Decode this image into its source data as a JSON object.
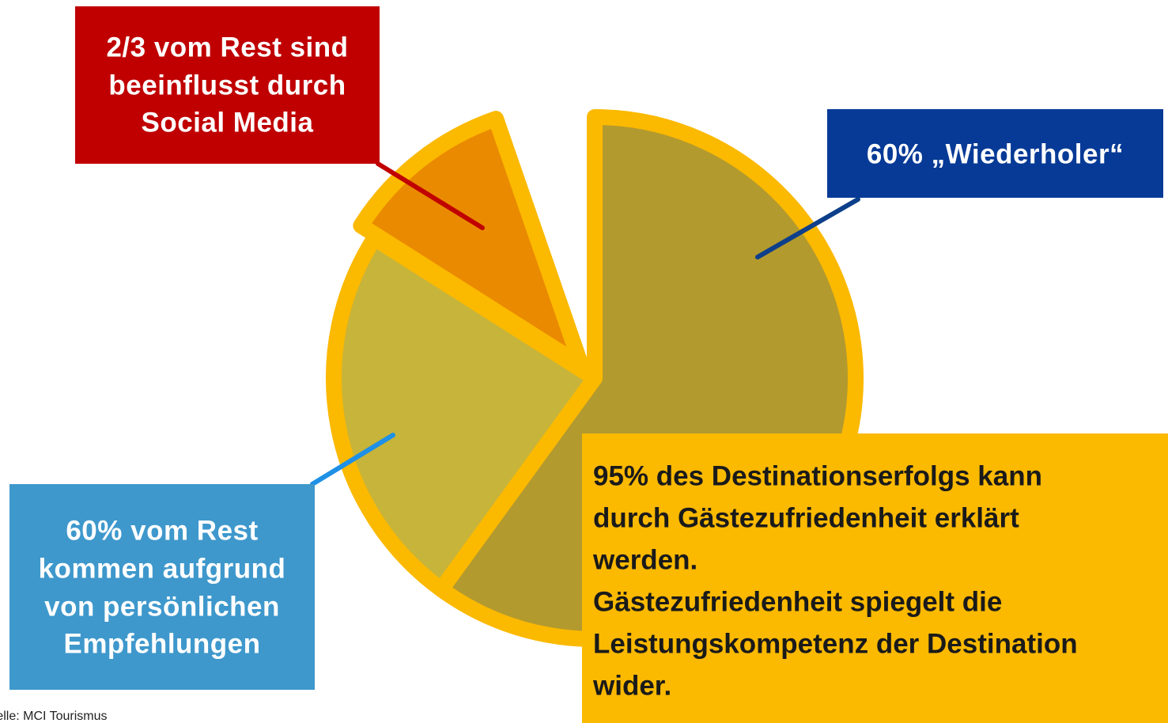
{
  "chart_data": {
    "type": "pie",
    "series": [
      {
        "values": [
          60,
          24,
          10.7,
          5.3
        ],
        "colors": [
          "#b39a2e",
          "#c7b43a",
          "#ea8a00",
          null
        ]
      }
    ],
    "border_color": "#fbb900",
    "annotations": [
      {
        "slice": 0,
        "color": "#063a96",
        "line_color": "#0d3f8a",
        "lines": [
          "60% „Wiederholer“"
        ]
      },
      {
        "slice": 1,
        "color": "#3e98cc",
        "line_color": "#1e90e6",
        "lines": [
          "60% vom Rest",
          "kommen aufgrund",
          "von persönlichen",
          "Empfehlungen"
        ]
      },
      {
        "slice": 2,
        "color": "#c00000",
        "line_color": "#c00000",
        "lines": [
          "2/3 vom Rest sind",
          "beeinflusst durch",
          "Social Media"
        ]
      }
    ],
    "note": {
      "color": "#fbb900",
      "lines": [
        "95% des Destinationserfolgs kann",
        "durch Gästezufriedenheit erklärt",
        "werden.",
        "Gästezufriedenheit spiegelt die",
        "Leistungskompetenz der Destination",
        "wider."
      ]
    },
    "source": "Quelle: MCI Tourismus"
  }
}
